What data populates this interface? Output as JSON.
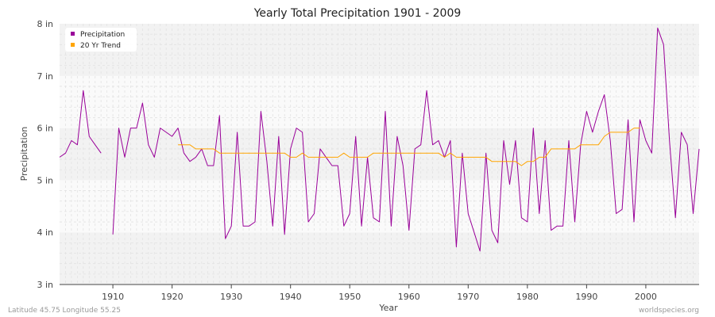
{
  "chart_data": {
    "type": "line",
    "title": "Yearly Total Precipitation 1901 - 2009",
    "xlabel": "Year",
    "ylabel": "Precipitation",
    "xlim": [
      1901,
      2009
    ],
    "ylim": [
      3,
      8
    ],
    "x_ticks": [
      1910,
      1920,
      1930,
      1940,
      1950,
      1960,
      1970,
      1980,
      1990,
      2000
    ],
    "y_ticks": [
      {
        "value": 3,
        "label": "3 in"
      },
      {
        "value": 4,
        "label": "4 in"
      },
      {
        "value": 5,
        "label": "5 in"
      },
      {
        "value": 6,
        "label": "6 in"
      },
      {
        "value": 7,
        "label": "7 in"
      },
      {
        "value": 8,
        "label": "8 in"
      }
    ],
    "grid": true,
    "legend_position": "top-left",
    "series": [
      {
        "name": "Precipitation",
        "color": "#990099",
        "x": [
          1901,
          1902,
          1903,
          1904,
          1905,
          1906,
          1907,
          1908,
          1909,
          1910,
          1911,
          1912,
          1913,
          1914,
          1915,
          1916,
          1917,
          1918,
          1919,
          1920,
          1921,
          1922,
          1923,
          1924,
          1925,
          1926,
          1927,
          1928,
          1929,
          1930,
          1931,
          1932,
          1933,
          1934,
          1935,
          1936,
          1937,
          1938,
          1939,
          1940,
          1941,
          1942,
          1943,
          1944,
          1945,
          1946,
          1947,
          1948,
          1949,
          1950,
          1951,
          1952,
          1953,
          1954,
          1955,
          1956,
          1957,
          1958,
          1959,
          1960,
          1961,
          1962,
          1963,
          1964,
          1965,
          1966,
          1967,
          1968,
          1969,
          1970,
          1971,
          1972,
          1973,
          1974,
          1975,
          1976,
          1977,
          1978,
          1979,
          1980,
          1981,
          1982,
          1983,
          1984,
          1985,
          1986,
          1987,
          1988,
          1989,
          1990,
          1991,
          1992,
          1993,
          1994,
          1995,
          1996,
          1997,
          1998,
          1999,
          2000,
          2001,
          2002,
          2003,
          2004,
          2005,
          2006,
          2007,
          2008,
          2009
        ],
        "values": [
          5.44,
          5.52,
          5.76,
          5.68,
          6.72,
          5.84,
          5.68,
          5.52,
          null,
          3.96,
          6.0,
          5.44,
          6.0,
          6.0,
          6.48,
          5.68,
          5.44,
          6.0,
          5.92,
          5.84,
          6.0,
          5.52,
          5.36,
          5.44,
          5.6,
          5.28,
          5.28,
          6.24,
          3.88,
          4.12,
          5.92,
          4.12,
          4.12,
          4.2,
          6.32,
          5.36,
          4.12,
          5.84,
          3.96,
          5.6,
          6.0,
          5.92,
          4.2,
          4.36,
          5.6,
          5.44,
          5.28,
          5.28,
          4.12,
          4.36,
          5.84,
          4.12,
          5.44,
          4.28,
          4.2,
          6.32,
          4.12,
          5.84,
          5.28,
          4.04,
          5.6,
          5.68,
          6.72,
          5.68,
          5.76,
          5.44,
          5.76,
          3.72,
          5.52,
          4.36,
          4.0,
          3.64,
          5.52,
          4.04,
          3.8,
          5.76,
          4.92,
          5.76,
          4.28,
          4.2,
          6.0,
          4.36,
          5.76,
          4.04,
          4.12,
          4.12,
          5.76,
          4.2,
          5.68,
          6.32,
          5.92,
          6.32,
          6.64,
          5.76,
          4.36,
          4.44,
          6.16,
          4.2,
          6.16,
          5.76,
          5.52,
          7.92,
          7.6,
          5.76,
          4.28,
          5.92,
          5.68,
          4.36,
          5.6
        ]
      },
      {
        "name": "20 Yr Trend",
        "color": "#ffa500",
        "x": [
          1921,
          1922,
          1923,
          1924,
          1925,
          1926,
          1927,
          1928,
          1929,
          1930,
          1931,
          1932,
          1933,
          1934,
          1935,
          1936,
          1937,
          1938,
          1939,
          1940,
          1941,
          1942,
          1943,
          1944,
          1945,
          1946,
          1947,
          1948,
          1949,
          1950,
          1951,
          1952,
          1953,
          1954,
          1955,
          1956,
          1957,
          1958,
          1959,
          1960,
          1961,
          1962,
          1963,
          1964,
          1965,
          1966,
          1967,
          1968,
          1969,
          1970,
          1971,
          1972,
          1973,
          1974,
          1975,
          1976,
          1977,
          1978,
          1979,
          1980,
          1981,
          1982,
          1983,
          1984,
          1985,
          1986,
          1987,
          1988,
          1989,
          1990,
          1991,
          1992,
          1993,
          1994,
          1995,
          1996,
          1997,
          1998,
          1999
        ],
        "values": [
          5.68,
          5.68,
          5.68,
          5.6,
          5.6,
          5.6,
          5.6,
          5.52,
          5.52,
          5.52,
          5.52,
          5.52,
          5.52,
          5.52,
          5.52,
          5.52,
          5.52,
          5.52,
          5.52,
          5.44,
          5.44,
          5.52,
          5.44,
          5.44,
          5.44,
          5.44,
          5.44,
          5.44,
          5.52,
          5.44,
          5.44,
          5.44,
          5.44,
          5.52,
          5.52,
          5.52,
          5.52,
          5.52,
          5.52,
          5.52,
          5.52,
          5.52,
          5.52,
          5.52,
          5.52,
          5.44,
          5.52,
          5.44,
          5.44,
          5.44,
          5.44,
          5.44,
          5.44,
          5.36,
          5.36,
          5.36,
          5.36,
          5.36,
          5.28,
          5.36,
          5.36,
          5.44,
          5.44,
          5.6,
          5.6,
          5.6,
          5.6,
          5.6,
          5.68,
          5.68,
          5.68,
          5.68,
          5.84,
          5.92,
          5.92,
          5.92,
          5.92,
          6.0,
          6.0
        ]
      }
    ]
  },
  "footer": {
    "location": "Latitude 45.75 Longitude 55.25",
    "source": "worldspecies.org"
  }
}
